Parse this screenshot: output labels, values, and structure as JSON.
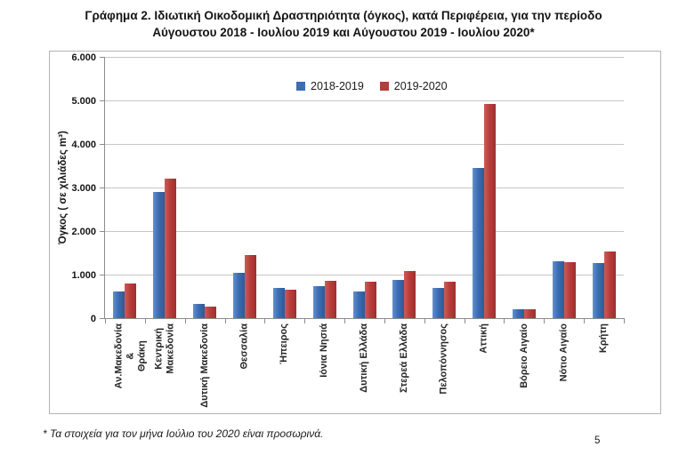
{
  "page": {
    "title_line1": "Γράφημα 2. Ιδιωτική Οικοδομική Δραστηριότητα (όγκος), κατά Περιφέρεια, για την περίοδο",
    "title_line2": "Αύγουστου 2018 - Ιουλίου 2019 και Αύγουστου 2019 - Ιουλίου 2020*",
    "footnote": "* Τα στοιχεία για τον μήνα Ιούλιο του 2020 είναι προσωρινά.",
    "page_number": "5"
  },
  "chart_data": {
    "type": "bar",
    "title": "",
    "xlabel": "",
    "ylabel": "Όγκος ( σε χιλιάδες  m³)",
    "ylim": [
      0,
      6000
    ],
    "y_tick_interval": 1000,
    "y_tick_labels": [
      "0",
      "1.000",
      "2.000",
      "3.000",
      "4.000",
      "5.000",
      "6.000"
    ],
    "grid": true,
    "legend_position": "top-center",
    "categories": [
      "Αν.Μακεδονία & Θράκη",
      "Κεντρική Μακεδονία",
      "Δυτική Μακεδονία",
      "Θεσσαλία",
      "Ήπειρος",
      "Ιόνια Νησιά",
      "Δυτική Ελλάδα",
      "Στερεά Ελλάδα",
      "Πελοπόννησος",
      "Αττική",
      "Βόρειο Αιγαίο",
      "Νότιο Αιγαίο",
      "Κρήτη"
    ],
    "category_label_lines": [
      [
        "Αν.Μακεδονία &",
        "Θράκη"
      ],
      [
        "Κεντρική",
        "Μακεδονία"
      ],
      [
        "Δυτική Μακεδονία"
      ],
      [
        "Θεσσαλία"
      ],
      [
        "Ήπειρος"
      ],
      [
        "Ιόνια Νησιά"
      ],
      [
        "Δυτική Ελλάδα"
      ],
      [
        "Στερεά Ελλάδα"
      ],
      [
        "Πελοπόννησος"
      ],
      [
        "Αττική"
      ],
      [
        "Βόρειο Αιγαίο"
      ],
      [
        "Νότιο Αιγαίο"
      ],
      [
        "Κρήτη"
      ]
    ],
    "series": [
      {
        "name": "2018-2019",
        "color": "#3D6DB4",
        "values": [
          620,
          2900,
          320,
          1040,
          700,
          740,
          610,
          880,
          700,
          3450,
          200,
          1310,
          1270
        ]
      },
      {
        "name": "2019-2020",
        "color": "#B23D3B",
        "values": [
          800,
          3200,
          260,
          1450,
          660,
          860,
          830,
          1080,
          830,
          4920,
          200,
          1290,
          1530
        ]
      }
    ]
  },
  "colors": {
    "series_blue": "#3D6DB4",
    "series_red": "#B23D3B",
    "gridline": "#C6C6C6",
    "axis": "#8C8C8C",
    "chart_border": "#B3B3B3"
  }
}
